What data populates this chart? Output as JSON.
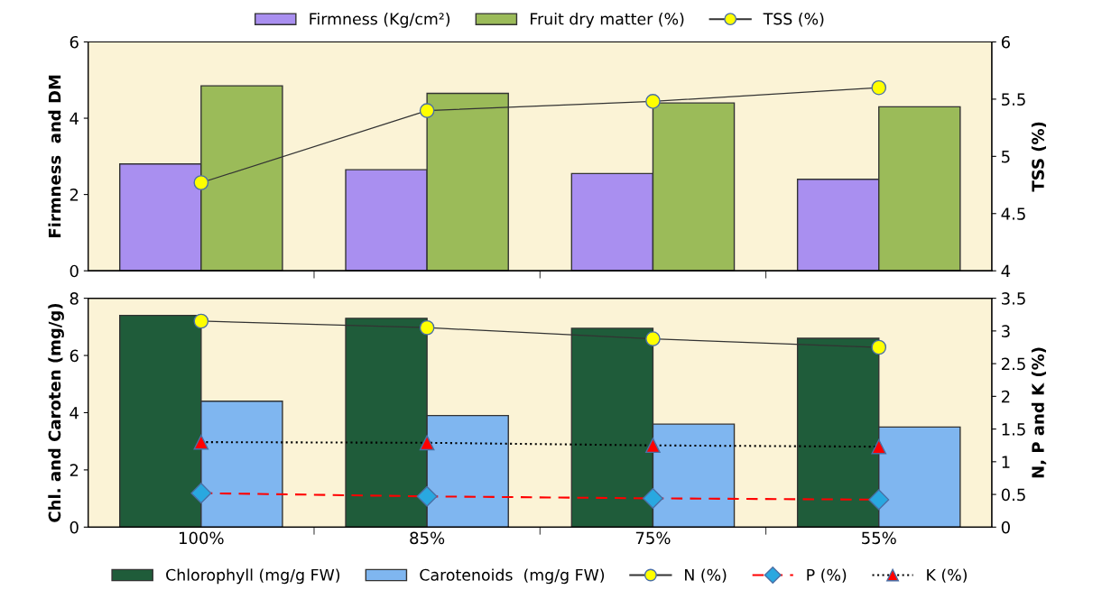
{
  "chart_data": [
    {
      "type": "bar",
      "categories": [
        null,
        null,
        null,
        null
      ],
      "ylabel": "Firmness  and DM",
      "y2label": "TSS (%)",
      "ylim": [
        0,
        6
      ],
      "yticks": [
        0,
        2,
        4,
        6
      ],
      "y2lim": [
        4,
        6
      ],
      "y2ticks": [
        4,
        4.5,
        5,
        5.5,
        6
      ],
      "tick_labels": "y",
      "legend": "top",
      "grid": false,
      "series": [
        {
          "name": "Firmness (Kg/cm²)",
          "color": "#a98ff0",
          "values": [
            2.8,
            2.65,
            2.55,
            2.4
          ]
        },
        {
          "name": "Fruit dry matter (%)",
          "color": "#9bbb59",
          "values": [
            4.85,
            4.65,
            4.4,
            4.3
          ]
        },
        {
          "name": "TSS (%)",
          "type": "line",
          "axis": "y2",
          "color": "#ffff00",
          "marker": "circle",
          "line_style": "solid",
          "values": [
            4.77,
            5.4,
            5.48,
            5.6
          ]
        }
      ]
    },
    {
      "type": "bar",
      "categories": [
        "100%",
        "85%",
        "75%",
        "55%"
      ],
      "ylabel": "Chl. and Caroten (mg/g)",
      "y2label": "N, P and K (%)",
      "ylim": [
        0,
        8
      ],
      "yticks": [
        0,
        2,
        4,
        6,
        8
      ],
      "y2lim": [
        0,
        3.5
      ],
      "y2ticks": [
        0,
        0.5,
        1,
        1.5,
        2,
        2.5,
        3,
        3.5
      ],
      "legend": "bottom",
      "grid": false,
      "series": [
        {
          "name": "Chlorophyll (mg/g FW)",
          "color": "#1f5c3a",
          "values": [
            7.4,
            7.3,
            6.95,
            6.6
          ]
        },
        {
          "name": "Carotenoids  (mg/g FW)",
          "color": "#7fb6f0",
          "values": [
            4.4,
            3.9,
            3.6,
            3.5
          ]
        },
        {
          "name": "N (%)",
          "type": "line",
          "axis": "y2",
          "color": "#ffff00",
          "marker": "circle",
          "line_style": "solid",
          "values": [
            3.15,
            3.05,
            2.88,
            2.75
          ]
        },
        {
          "name": "P (%)",
          "type": "line",
          "axis": "y2",
          "color": "#29a8e0",
          "marker": "diamond",
          "line_style": "dashed",
          "values": [
            0.52,
            0.47,
            0.44,
            0.42
          ]
        },
        {
          "name": "K (%)",
          "type": "line",
          "axis": "y2",
          "color": "#ff0000",
          "marker": "triangle",
          "line_style": "dotted",
          "values": [
            1.3,
            1.29,
            1.25,
            1.23
          ]
        }
      ]
    }
  ]
}
